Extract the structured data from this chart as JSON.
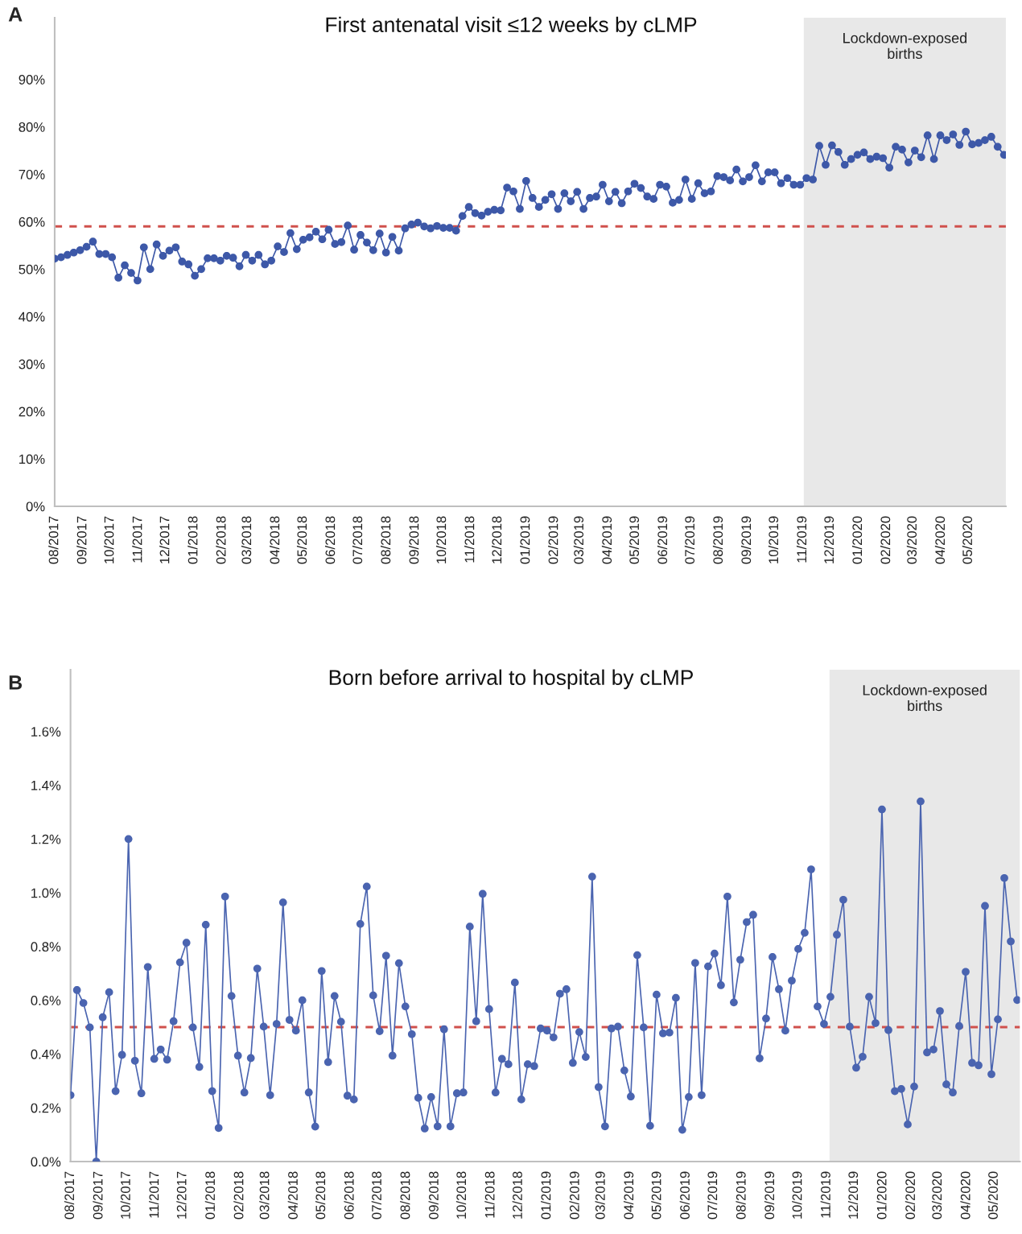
{
  "chart_data": [
    {
      "type": "line",
      "title": "First antenatal visit ≤12 weeks by cLMP",
      "annotations": [
        "A"
      ],
      "x": [
        "2017-08-01",
        "2017-08-08",
        "2017-08-15",
        "2017-08-22",
        "2017-08-29",
        "2017-09-05",
        "2017-09-12",
        "2017-09-19",
        "2017-09-26",
        "2017-10-03",
        "2017-10-10",
        "2017-10-17",
        "2017-10-24",
        "2017-10-31",
        "2017-11-07",
        "2017-11-14",
        "2017-11-21",
        "2017-11-28",
        "2017-12-05",
        "2017-12-12",
        "2017-12-19",
        "2017-12-26",
        "2018-01-02",
        "2018-01-09",
        "2018-01-16",
        "2018-01-23",
        "2018-01-30",
        "2018-02-06",
        "2018-02-13",
        "2018-02-20",
        "2018-02-27",
        "2018-03-06",
        "2018-03-13",
        "2018-03-20",
        "2018-03-27",
        "2018-04-03",
        "2018-04-10",
        "2018-04-17",
        "2018-04-24",
        "2018-05-01",
        "2018-05-08",
        "2018-05-15",
        "2018-05-22",
        "2018-05-29",
        "2018-06-05",
        "2018-06-12",
        "2018-06-19",
        "2018-06-26",
        "2018-07-03",
        "2018-07-10",
        "2018-07-17",
        "2018-07-24",
        "2018-07-31",
        "2018-08-07",
        "2018-08-14",
        "2018-08-21",
        "2018-08-28",
        "2018-09-04",
        "2018-09-11",
        "2018-09-18",
        "2018-09-25",
        "2018-10-02",
        "2018-10-09",
        "2018-10-16",
        "2018-10-23",
        "2018-10-30",
        "2018-11-06",
        "2018-11-13",
        "2018-11-20",
        "2018-11-27",
        "2018-12-04",
        "2018-12-11",
        "2018-12-18",
        "2018-12-25",
        "2019-01-01",
        "2019-01-08",
        "2019-01-15",
        "2019-01-22",
        "2019-01-29",
        "2019-02-05",
        "2019-02-12",
        "2019-02-19",
        "2019-02-26",
        "2019-03-05",
        "2019-03-12",
        "2019-03-19",
        "2019-03-26",
        "2019-04-02",
        "2019-04-09",
        "2019-04-16",
        "2019-04-23",
        "2019-04-30",
        "2019-05-07",
        "2019-05-14",
        "2019-05-21",
        "2019-05-28",
        "2019-06-04",
        "2019-06-11",
        "2019-06-18",
        "2019-06-25",
        "2019-07-02",
        "2019-07-09",
        "2019-07-16",
        "2019-07-23",
        "2019-07-30",
        "2019-08-06",
        "2019-08-13",
        "2019-08-20",
        "2019-08-27",
        "2019-09-03",
        "2019-09-10",
        "2019-09-17",
        "2019-09-24",
        "2019-10-01",
        "2019-10-08",
        "2019-10-15",
        "2019-10-22",
        "2019-10-29",
        "2019-11-05",
        "2019-11-12",
        "2019-11-19",
        "2019-11-26",
        "2019-12-03",
        "2019-12-10",
        "2019-12-17",
        "2019-12-24",
        "2019-12-31",
        "2020-01-07",
        "2020-01-14",
        "2020-01-21",
        "2020-01-28",
        "2020-02-04",
        "2020-02-11",
        "2020-02-18",
        "2020-02-25",
        "2020-03-03",
        "2020-03-10",
        "2020-03-17",
        "2020-03-24",
        "2020-03-31",
        "2020-04-07",
        "2020-04-14",
        "2020-04-21",
        "2020-04-28",
        "2020-05-05",
        "2020-05-12",
        "2020-05-19",
        "2020-05-26",
        "2020-06-02",
        "2020-06-09"
      ],
      "series": [
        {
          "color": "#3d58a8",
          "values": [
            52.2,
            52.5,
            53.0,
            53.5,
            54.0,
            54.7,
            55.8,
            53.2,
            53.2,
            52.5,
            48.2,
            50.8,
            49.2,
            47.6,
            54.6,
            50.0,
            55.2,
            52.8,
            53.9,
            54.6,
            51.6,
            51.0,
            48.6,
            50.0,
            52.3,
            52.3,
            51.8,
            52.8,
            52.4,
            50.6,
            53.0,
            51.8,
            53.0,
            51.0,
            51.8,
            54.8,
            53.6,
            57.6,
            54.2,
            56.2,
            56.7,
            57.9,
            56.3,
            58.3,
            55.3,
            55.7,
            59.2,
            54.1,
            57.2,
            55.6,
            54.0,
            57.5,
            53.5,
            56.8,
            53.9,
            58.6,
            59.4,
            59.8,
            59.0,
            58.6,
            59.1,
            58.7,
            58.7,
            58.1,
            61.2,
            63.1,
            61.8,
            61.3,
            62.1,
            62.5,
            62.4,
            67.2,
            66.4,
            62.7,
            68.6,
            65.0,
            63.1,
            64.6,
            65.8,
            62.7,
            66.0,
            64.3,
            66.3,
            62.7,
            65.0,
            65.3,
            67.8,
            64.3,
            66.3,
            63.9,
            66.4,
            68.0,
            67.1,
            65.3,
            64.8,
            67.8,
            67.4,
            64.0,
            64.6,
            68.9,
            64.8,
            68.1,
            66.0,
            66.4,
            69.6,
            69.4,
            68.7,
            71.0,
            68.5,
            69.4,
            71.9,
            68.5,
            70.4,
            70.4,
            68.1,
            69.2,
            67.8,
            67.8,
            69.2,
            68.9,
            76.0,
            72.0,
            76.1,
            74.7,
            72.0,
            73.2,
            74.1,
            74.6,
            73.2,
            73.7,
            73.4,
            71.4,
            75.8,
            75.2,
            72.5,
            75.0,
            73.6,
            78.2,
            73.2,
            78.2,
            77.2,
            78.4,
            76.2,
            79.0,
            76.3,
            76.6,
            77.2,
            77.9,
            75.8,
            74.1
          ]
        }
      ],
      "xlim": [
        "2017-08-01",
        "2020-06-11"
      ],
      "ylim": [
        0,
        103
      ],
      "xticks": [
        {
          "value": "2017-08-01",
          "label": "08/2017"
        },
        {
          "value": "2017-09-01",
          "label": "09/2017"
        },
        {
          "value": "2017-10-01",
          "label": "10/2017"
        },
        {
          "value": "2017-11-01",
          "label": "11/2017"
        },
        {
          "value": "2017-12-01",
          "label": "12/2017"
        },
        {
          "value": "2018-01-01",
          "label": "01/2018"
        },
        {
          "value": "2018-02-01",
          "label": "02/2018"
        },
        {
          "value": "2018-03-01",
          "label": "03/2018"
        },
        {
          "value": "2018-04-01",
          "label": "04/2018"
        },
        {
          "value": "2018-05-01",
          "label": "05/2018"
        },
        {
          "value": "2018-06-01",
          "label": "06/2018"
        },
        {
          "value": "2018-07-01",
          "label": "07/2018"
        },
        {
          "value": "2018-08-01",
          "label": "08/2018"
        },
        {
          "value": "2018-09-01",
          "label": "09/2018"
        },
        {
          "value": "2018-10-01",
          "label": "10/2018"
        },
        {
          "value": "2018-11-01",
          "label": "11/2018"
        },
        {
          "value": "2018-12-01",
          "label": "12/2018"
        },
        {
          "value": "2019-01-01",
          "label": "01/2019"
        },
        {
          "value": "2019-02-01",
          "label": "02/2019"
        },
        {
          "value": "2019-03-01",
          "label": "03/2019"
        },
        {
          "value": "2019-04-01",
          "label": "04/2019"
        },
        {
          "value": "2019-05-01",
          "label": "05/2019"
        },
        {
          "value": "2019-06-01",
          "label": "06/2019"
        },
        {
          "value": "2019-07-01",
          "label": "07/2019"
        },
        {
          "value": "2019-08-01",
          "label": "08/2019"
        },
        {
          "value": "2019-09-01",
          "label": "09/2019"
        },
        {
          "value": "2019-10-01",
          "label": "10/2019"
        },
        {
          "value": "2019-11-01",
          "label": "11/2019"
        },
        {
          "value": "2019-12-01",
          "label": "12/2019"
        },
        {
          "value": "2020-01-01",
          "label": "01/2020"
        },
        {
          "value": "2020-02-01",
          "label": "02/2020"
        },
        {
          "value": "2020-03-01",
          "label": "03/2020"
        },
        {
          "value": "2020-04-01",
          "label": "04/2020"
        },
        {
          "value": "2020-05-01",
          "label": "05/2020"
        }
      ],
      "yticks": [
        {
          "value": 0,
          "label": "0%"
        },
        {
          "value": 10,
          "label": "10%"
        },
        {
          "value": 20,
          "label": "20%"
        },
        {
          "value": 30,
          "label": "30%"
        },
        {
          "value": 40,
          "label": "40%"
        },
        {
          "value": 50,
          "label": "50%"
        },
        {
          "value": 60,
          "label": "60%"
        },
        {
          "value": 70,
          "label": "70%"
        },
        {
          "value": 80,
          "label": "80%"
        },
        {
          "value": 90,
          "label": "90%"
        }
      ],
      "ref_lines": [
        {
          "axis": "y",
          "value": 59,
          "color": "#d0504c",
          "line_style": "dashed"
        }
      ],
      "bands": [
        {
          "axis": "x",
          "from": "2019-11-02",
          "to": "2020-06-11",
          "label": "Lockdown-exposed\nbirths",
          "color": "#e8e8e8"
        }
      ],
      "marker": "circle",
      "line_style": "solid"
    },
    {
      "type": "line",
      "title": "Born before arrival to hospital by cLMP",
      "annotations": [
        "B"
      ],
      "x": [
        "2017-08-01",
        "2017-08-08",
        "2017-08-15",
        "2017-08-22",
        "2017-08-29",
        "2017-09-05",
        "2017-09-12",
        "2017-09-19",
        "2017-09-26",
        "2017-10-03",
        "2017-10-10",
        "2017-10-17",
        "2017-10-24",
        "2017-10-31",
        "2017-11-07",
        "2017-11-14",
        "2017-11-21",
        "2017-11-28",
        "2017-12-05",
        "2017-12-12",
        "2017-12-19",
        "2017-12-26",
        "2018-01-02",
        "2018-01-09",
        "2018-01-16",
        "2018-01-23",
        "2018-01-30",
        "2018-02-06",
        "2018-02-13",
        "2018-02-20",
        "2018-02-27",
        "2018-03-06",
        "2018-03-13",
        "2018-03-20",
        "2018-03-27",
        "2018-04-03",
        "2018-04-10",
        "2018-04-17",
        "2018-04-24",
        "2018-05-01",
        "2018-05-08",
        "2018-05-15",
        "2018-05-22",
        "2018-05-29",
        "2018-06-05",
        "2018-06-12",
        "2018-06-19",
        "2018-06-26",
        "2018-07-03",
        "2018-07-10",
        "2018-07-17",
        "2018-07-24",
        "2018-07-31",
        "2018-08-07",
        "2018-08-14",
        "2018-08-21",
        "2018-08-28",
        "2018-09-04",
        "2018-09-11",
        "2018-09-18",
        "2018-09-25",
        "2018-10-02",
        "2018-10-09",
        "2018-10-16",
        "2018-10-23",
        "2018-10-30",
        "2018-11-06",
        "2018-11-13",
        "2018-11-20",
        "2018-11-27",
        "2018-12-04",
        "2018-12-11",
        "2018-12-18",
        "2018-12-25",
        "2019-01-01",
        "2019-01-08",
        "2019-01-15",
        "2019-01-22",
        "2019-01-29",
        "2019-02-05",
        "2019-02-12",
        "2019-02-19",
        "2019-02-26",
        "2019-03-05",
        "2019-03-12",
        "2019-03-19",
        "2019-03-26",
        "2019-04-02",
        "2019-04-09",
        "2019-04-16",
        "2019-04-23",
        "2019-04-30",
        "2019-05-07",
        "2019-05-14",
        "2019-05-21",
        "2019-05-28",
        "2019-06-04",
        "2019-06-11",
        "2019-06-18",
        "2019-06-25",
        "2019-07-02",
        "2019-07-09",
        "2019-07-16",
        "2019-07-23",
        "2019-07-30",
        "2019-08-06",
        "2019-08-13",
        "2019-08-20",
        "2019-08-27",
        "2019-09-03",
        "2019-09-10",
        "2019-09-17",
        "2019-09-24",
        "2019-10-01",
        "2019-10-08",
        "2019-10-15",
        "2019-10-22",
        "2019-10-29",
        "2019-11-05",
        "2019-11-12",
        "2019-11-19",
        "2019-11-26",
        "2019-12-03",
        "2019-12-10",
        "2019-12-17",
        "2019-12-24",
        "2019-12-31",
        "2020-01-07",
        "2020-01-14",
        "2020-01-21",
        "2020-01-28",
        "2020-02-04",
        "2020-02-11",
        "2020-02-18",
        "2020-02-25",
        "2020-03-03",
        "2020-03-10",
        "2020-03-17",
        "2020-03-24",
        "2020-03-31",
        "2020-04-07",
        "2020-04-14",
        "2020-04-21",
        "2020-04-28",
        "2020-05-05",
        "2020-05-12",
        "2020-05-19",
        "2020-05-26"
      ],
      "series": [
        {
          "color": "#4a64b0",
          "values": [
            0.247,
            0.638,
            0.59,
            0.499,
            0.0,
            0.537,
            0.63,
            0.262,
            0.397,
            1.2,
            0.375,
            0.254,
            0.724,
            0.382,
            0.417,
            0.379,
            0.522,
            0.741,
            0.814,
            0.499,
            0.352,
            0.881,
            0.262,
            0.125,
            0.986,
            0.616,
            0.394,
            0.257,
            0.385,
            0.718,
            0.502,
            0.247,
            0.512,
            0.964,
            0.527,
            0.487,
            0.6,
            0.257,
            0.13,
            0.709,
            0.37,
            0.616,
            0.52,
            0.245,
            0.231,
            0.884,
            1.023,
            0.618,
            0.485,
            0.766,
            0.394,
            0.738,
            0.577,
            0.474,
            0.237,
            0.123,
            0.24,
            0.131,
            0.492,
            0.131,
            0.254,
            0.257,
            0.874,
            0.522,
            0.996,
            0.567,
            0.257,
            0.382,
            0.362,
            0.666,
            0.231,
            0.362,
            0.355,
            0.495,
            0.487,
            0.462,
            0.624,
            0.641,
            0.367,
            0.482,
            0.389,
            1.06,
            0.277,
            0.131,
            0.495,
            0.502,
            0.339,
            0.242,
            0.768,
            0.499,
            0.133,
            0.621,
            0.477,
            0.48,
            0.609,
            0.118,
            0.24,
            0.739,
            0.247,
            0.726,
            0.774,
            0.656,
            0.986,
            0.592,
            0.751,
            0.891,
            0.918,
            0.384,
            0.532,
            0.761,
            0.641,
            0.487,
            0.673,
            0.791,
            0.851,
            1.087,
            0.577,
            0.512,
            0.613,
            0.844,
            0.974,
            0.502,
            0.349,
            0.39,
            0.613,
            0.515,
            1.31,
            0.489,
            0.262,
            0.27,
            0.138,
            0.279,
            1.34,
            0.406,
            0.417,
            0.56,
            0.287,
            0.257,
            0.504,
            0.706,
            0.367,
            0.358,
            0.951,
            0.325,
            0.529,
            1.055,
            0.819,
            0.601
          ]
        }
      ],
      "xlim": [
        "2017-08-01",
        "2020-05-29"
      ],
      "ylim": [
        0,
        1.83
      ],
      "xticks": [
        {
          "value": "2017-08-01",
          "label": "08/2017"
        },
        {
          "value": "2017-09-01",
          "label": "09/2017"
        },
        {
          "value": "2017-10-01",
          "label": "10/2017"
        },
        {
          "value": "2017-11-01",
          "label": "11/2017"
        },
        {
          "value": "2017-12-01",
          "label": "12/2017"
        },
        {
          "value": "2018-01-01",
          "label": "01/2018"
        },
        {
          "value": "2018-02-01",
          "label": "02/2018"
        },
        {
          "value": "2018-03-01",
          "label": "03/2018"
        },
        {
          "value": "2018-04-01",
          "label": "04/2018"
        },
        {
          "value": "2018-05-01",
          "label": "05/2018"
        },
        {
          "value": "2018-06-01",
          "label": "06/2018"
        },
        {
          "value": "2018-07-01",
          "label": "07/2018"
        },
        {
          "value": "2018-08-01",
          "label": "08/2018"
        },
        {
          "value": "2018-09-01",
          "label": "09/2018"
        },
        {
          "value": "2018-10-01",
          "label": "10/2018"
        },
        {
          "value": "2018-11-01",
          "label": "11/2018"
        },
        {
          "value": "2018-12-01",
          "label": "12/2018"
        },
        {
          "value": "2019-01-01",
          "label": "01/2019"
        },
        {
          "value": "2019-02-01",
          "label": "02/2019"
        },
        {
          "value": "2019-03-01",
          "label": "03/2019"
        },
        {
          "value": "2019-04-01",
          "label": "04/2019"
        },
        {
          "value": "2019-05-01",
          "label": "05/2019"
        },
        {
          "value": "2019-06-01",
          "label": "06/2019"
        },
        {
          "value": "2019-07-01",
          "label": "07/2019"
        },
        {
          "value": "2019-08-01",
          "label": "08/2019"
        },
        {
          "value": "2019-09-01",
          "label": "09/2019"
        },
        {
          "value": "2019-10-01",
          "label": "10/2019"
        },
        {
          "value": "2019-11-01",
          "label": "11/2019"
        },
        {
          "value": "2019-12-01",
          "label": "12/2019"
        },
        {
          "value": "2020-01-01",
          "label": "01/2020"
        },
        {
          "value": "2020-02-01",
          "label": "02/2020"
        },
        {
          "value": "2020-03-01",
          "label": "03/2020"
        },
        {
          "value": "2020-04-01",
          "label": "04/2020"
        },
        {
          "value": "2020-05-01",
          "label": "05/2020"
        }
      ],
      "yticks": [
        {
          "value": 0,
          "label": "0.0%"
        },
        {
          "value": 0.2,
          "label": "0.2%"
        },
        {
          "value": 0.4,
          "label": "0.4%"
        },
        {
          "value": 0.6,
          "label": "0.6%"
        },
        {
          "value": 0.8,
          "label": "0.8%"
        },
        {
          "value": 1.0,
          "label": "1.0%"
        },
        {
          "value": 1.2,
          "label": "1.2%"
        },
        {
          "value": 1.4,
          "label": "1.4%"
        },
        {
          "value": 1.6,
          "label": "1.6%"
        }
      ],
      "ref_lines": [
        {
          "axis": "y",
          "value": 0.5,
          "color": "#d0504c",
          "line_style": "dashed"
        }
      ],
      "bands": [
        {
          "axis": "x",
          "from": "2019-11-04",
          "to": "2020-05-29",
          "label": "Lockdown-exposed\nbirths",
          "color": "#e8e8e8"
        }
      ],
      "marker": "circle",
      "line_style": "solid"
    }
  ]
}
